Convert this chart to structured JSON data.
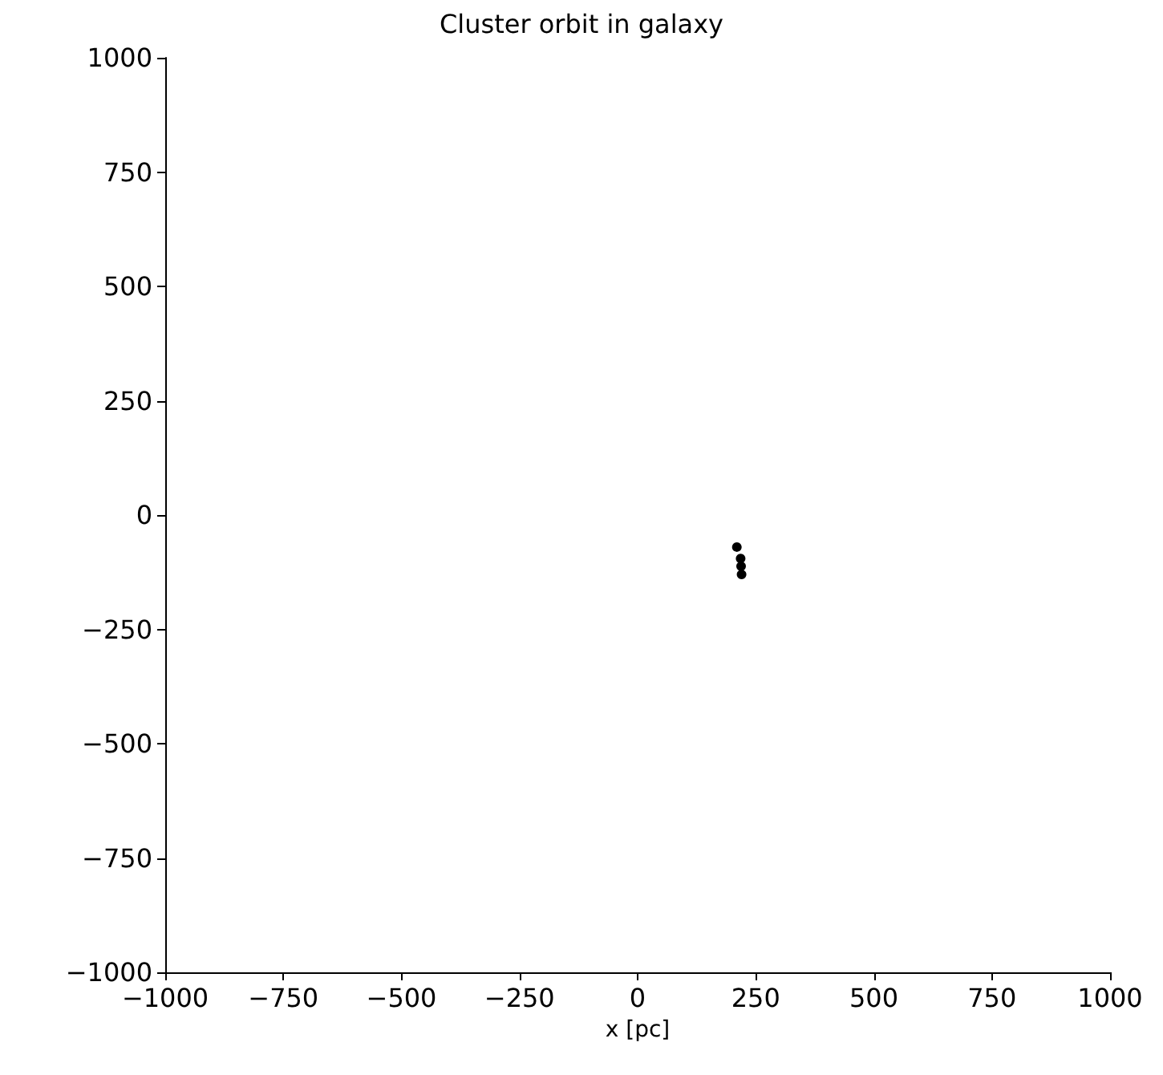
{
  "chart_data": {
    "type": "scatter",
    "title": "Cluster orbit in galaxy",
    "xlabel": "x [pc]",
    "x": [
      210,
      218,
      219,
      220
    ],
    "values": [
      -70,
      -95,
      -112,
      -130
    ],
    "color": "#000000",
    "marker": "circle",
    "grid": false,
    "xlim": [
      -1000,
      1000
    ],
    "ylim": [
      -1000,
      1000
    ],
    "xticks": [
      -1000,
      -750,
      -500,
      -250,
      0,
      250,
      500,
      750,
      1000
    ],
    "yticks": [
      -1000,
      -750,
      -500,
      -250,
      0,
      250,
      500,
      750,
      1000
    ]
  }
}
